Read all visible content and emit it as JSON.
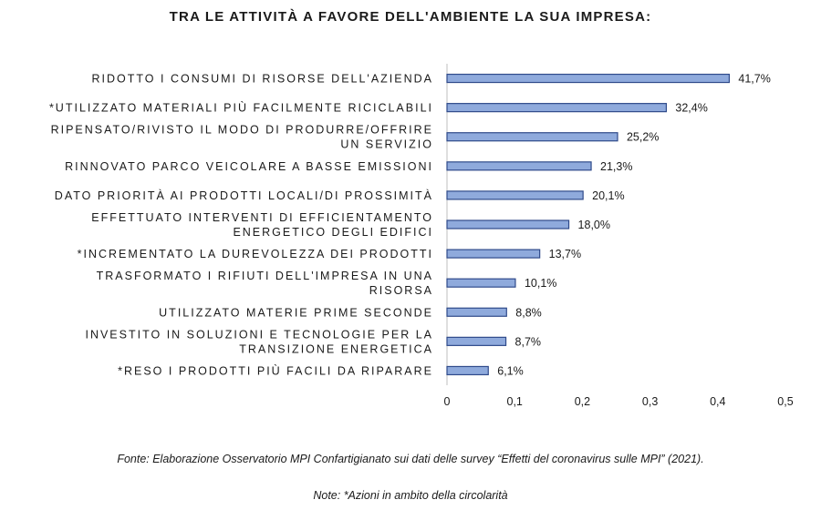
{
  "chart_data": {
    "type": "bar",
    "orientation": "horizontal",
    "title": "TRA LE ATTIVITÀ A FAVORE DELL'AMBIENTE LA SUA IMPRESA:",
    "categories": [
      "RIDOTTO I  CONSUMI DI RISORSE  DELL'AZIENDA",
      "*UTILIZZATO MATERIALI PIÙ FACILMENTE RICICLABILI",
      "RIPENSATO/RIVISTO IL MODO DI PRODURRE/OFFRIRE UN SERVIZIO",
      "RINNOVATO PARCO VEICOLARE A BASSE EMISSIONI",
      "DATO PRIORITÀ AI PRODOTTI LOCALI/DI PROSSIMITÀ",
      "EFFETTUATO INTERVENTI DI EFFICIENTAMENTO ENERGETICO DEGLI EDIFICI",
      "*INCREMENTATO LA DUREVOLEZZA DEI PRODOTTI",
      "TRASFORMATO I RIFIUTI DELL'IMPRESA IN UNA RISORSA",
      "UTILIZZATO MATERIE PRIME SECONDE",
      "INVESTITO IN SOLUZIONI E TECNOLOGIE PER LA TRANSIZIONE ENERGETICA",
      "*RESO I PRODOTTI PIÙ FACILI DA RIPARARE"
    ],
    "category_lines": [
      [
        "RIDOTTO I  CONSUMI DI RISORSE  DELL'AZIENDA"
      ],
      [
        "*UTILIZZATO MATERIALI PIÙ FACILMENTE RICICLABILI"
      ],
      [
        "RIPENSATO/RIVISTO IL MODO DI PRODURRE/OFFRIRE",
        "UN SERVIZIO"
      ],
      [
        "RINNOVATO PARCO VEICOLARE A BASSE EMISSIONI"
      ],
      [
        "DATO PRIORITÀ AI PRODOTTI LOCALI/DI PROSSIMITÀ"
      ],
      [
        "EFFETTUATO INTERVENTI DI EFFICIENTAMENTO",
        "ENERGETICO DEGLI EDIFICI"
      ],
      [
        "*INCREMENTATO LA DUREVOLEZZA DEI PRODOTTI"
      ],
      [
        "TRASFORMATO I RIFIUTI DELL'IMPRESA IN UNA",
        "RISORSA"
      ],
      [
        "UTILIZZATO MATERIE PRIME SECONDE"
      ],
      [
        "INVESTITO IN SOLUZIONI E TECNOLOGIE PER LA",
        "TRANSIZIONE ENERGETICA"
      ],
      [
        "*RESO I PRODOTTI PIÙ FACILI DA RIPARARE"
      ]
    ],
    "values": [
      0.417,
      0.324,
      0.252,
      0.213,
      0.201,
      0.18,
      0.137,
      0.101,
      0.088,
      0.087,
      0.061
    ],
    "data_labels": [
      "41,7%",
      "32,4%",
      "25,2%",
      "21,3%",
      "20,1%",
      "18,0%",
      "13,7%",
      "10,1%",
      "8,8%",
      "8,7%",
      "6,1%"
    ],
    "xlim": [
      0,
      0.5
    ],
    "xticks": [
      "0",
      "0,1",
      "0,2",
      "0,3",
      "0,4",
      "0,5"
    ],
    "xlabel": "",
    "ylabel": "",
    "grid": false,
    "bar_color": "#8FAADC",
    "bar_border_color": "#2F4A8A"
  },
  "footer": {
    "source": "Fonte: Elaborazione Osservatorio MPI Confartigianato sui dati delle survey “Effetti del coronavirus sulle MPI” (2021).",
    "note": "Note: *Azioni in ambito della circolarità"
  }
}
